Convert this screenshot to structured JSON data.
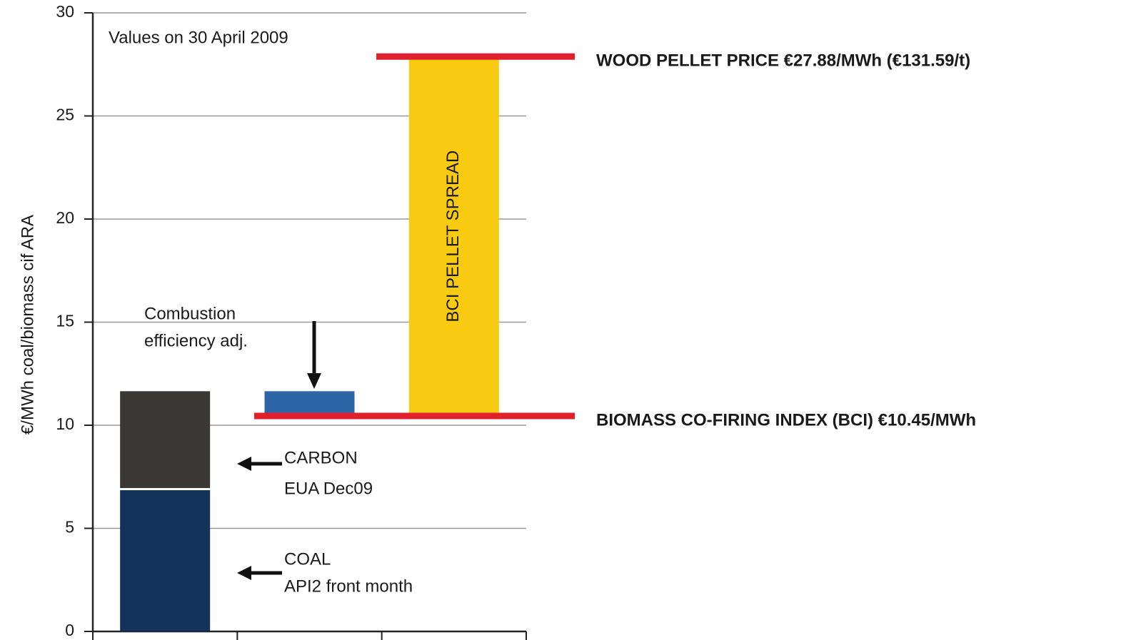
{
  "chart_data": {
    "type": "waterfall",
    "subtitle": "Values on 30 April 2009",
    "y_label": "€/MWh coal/biomass cif ARA",
    "categories": [
      null,
      null,
      null
    ],
    "ylim": [
      0,
      30
    ],
    "yticks": [
      0,
      5,
      10,
      15,
      20,
      25,
      30
    ],
    "grid": true,
    "segments": [
      {
        "category": 0,
        "value": 6.85,
        "color": "#14325a",
        "label": [
          "COAL",
          "API2 front month"
        ]
      },
      {
        "category": 0,
        "value": 4.8,
        "color": "#393835",
        "label": [
          "CARBON",
          "EUA Dec09"
        ]
      },
      {
        "category": 1,
        "value": -1.2,
        "color": "#2e64a8",
        "label": [
          "Combustion",
          "efficiency adj."
        ]
      },
      {
        "category": 2,
        "value": 17.43,
        "color": "#f9cb10",
        "label": [
          "BCI PELLET SPREAD"
        ]
      }
    ],
    "reference_lines": [
      {
        "value": 27.88,
        "color": "#e0202a",
        "label": "WOOD PELLET PRICE €27.88/MWh (€131.59/t)"
      },
      {
        "value": 10.45,
        "color": "#e0202a",
        "label": "BIOMASS CO-FIRING INDEX (BCI) €10.45/MWh"
      }
    ]
  }
}
